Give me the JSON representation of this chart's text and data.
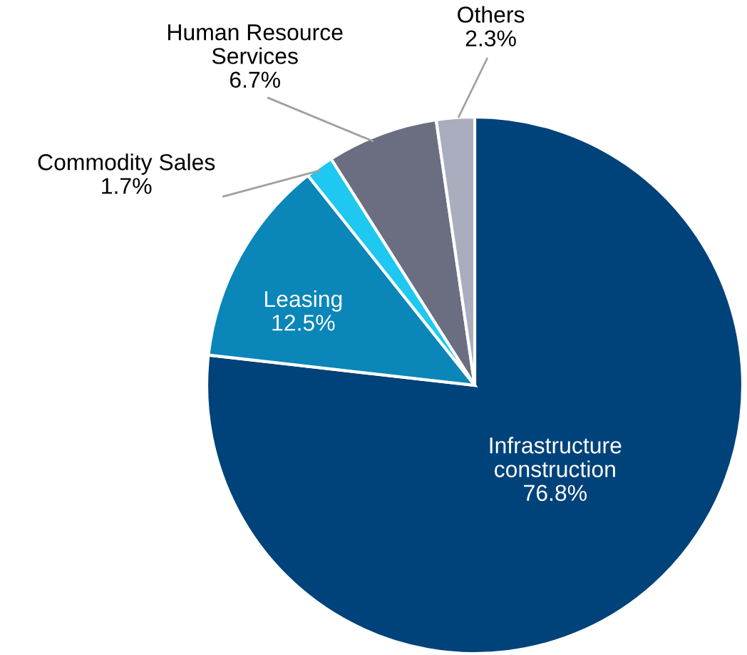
{
  "chart_data": {
    "type": "pie",
    "categories": [
      "Infrastructure\nconstruction",
      "Leasing",
      "Commodity Sales",
      "Human Resource\nServices",
      "Others"
    ],
    "values": [
      76.8,
      12.5,
      1.7,
      6.7,
      2.3
    ],
    "colors": [
      "#00427a",
      "#0a86b8",
      "#1ec8f0",
      "#6b6e80",
      "#a9adbd"
    ],
    "value_labels": [
      "76.8%",
      "12.5%",
      "1.7%",
      "6.7%",
      "2.3%"
    ]
  }
}
